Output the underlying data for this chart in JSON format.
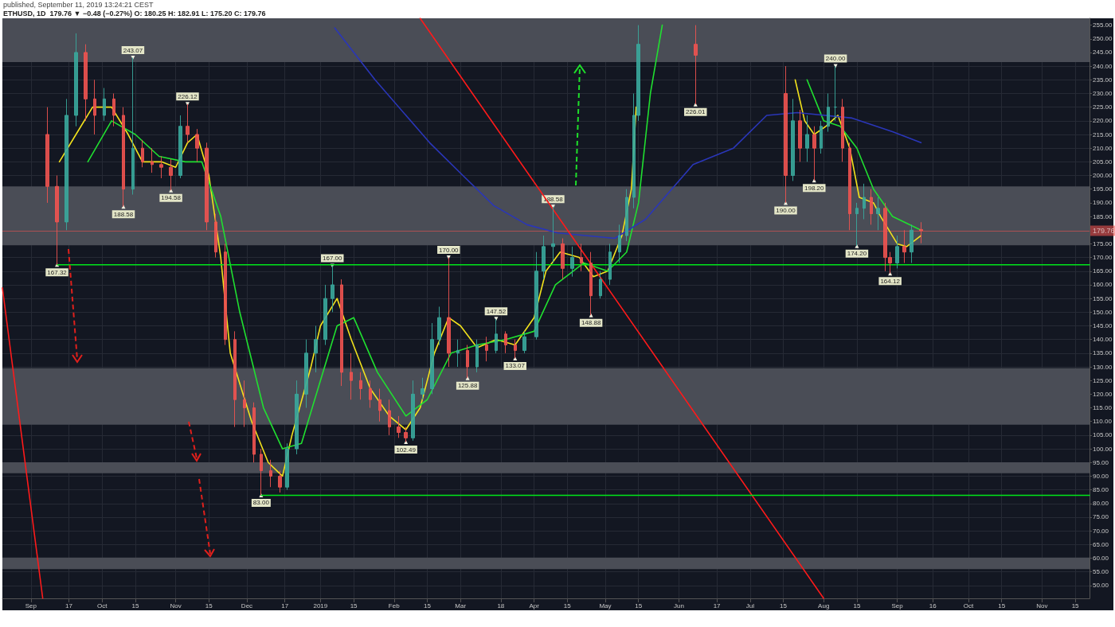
{
  "chart_data": {
    "type": "candlestick",
    "title": "ETHUSD, 1D  179.76 ▼ −0.48 (−0.27%) O: 180.25 H: 182.91 L: 175.20 C: 179.76",
    "subtitle": "published, September 11, 2019 13:24:21 CEST",
    "xlim": [
      "2018-08-20",
      "2019-11-21"
    ],
    "ylim": [
      45.3,
      257.5
    ],
    "grid": true,
    "xticks": [
      {
        "value": "2018-09-01",
        "label": "Sep"
      },
      {
        "value": "2018-09-17",
        "label": "17"
      },
      {
        "value": "2018-10-01",
        "label": "Oct"
      },
      {
        "value": "2018-10-15",
        "label": "15"
      },
      {
        "value": "2018-11-01",
        "label": "Nov"
      },
      {
        "value": "2018-11-15",
        "label": "15"
      },
      {
        "value": "2018-12-01",
        "label": "Dec"
      },
      {
        "value": "2018-12-17",
        "label": "17"
      },
      {
        "value": "2019-01-01",
        "label": "2019"
      },
      {
        "value": "2019-01-15",
        "label": "15"
      },
      {
        "value": "2019-02-01",
        "label": "Feb"
      },
      {
        "value": "2019-02-15",
        "label": "15"
      },
      {
        "value": "2019-03-01",
        "label": "Mar"
      },
      {
        "value": "2019-03-18",
        "label": "18"
      },
      {
        "value": "2019-04-01",
        "label": "Apr"
      },
      {
        "value": "2019-04-15",
        "label": "15"
      },
      {
        "value": "2019-05-01",
        "label": "May"
      },
      {
        "value": "2019-05-15",
        "label": "15"
      },
      {
        "value": "2019-06-01",
        "label": "Jun"
      },
      {
        "value": "2019-06-17",
        "label": "17"
      },
      {
        "value": "2019-07-01",
        "label": "Jul"
      },
      {
        "value": "2019-07-15",
        "label": "15"
      },
      {
        "value": "2019-08-01",
        "label": "Aug"
      },
      {
        "value": "2019-08-15",
        "label": "15"
      },
      {
        "value": "2019-09-01",
        "label": "Sep"
      },
      {
        "value": "2019-09-16",
        "label": "16"
      },
      {
        "value": "2019-10-01",
        "label": "Oct"
      },
      {
        "value": "2019-10-15",
        "label": "15"
      },
      {
        "value": "2019-11-01",
        "label": "Nov"
      },
      {
        "value": "2019-11-15",
        "label": "15"
      }
    ],
    "yticks": [
      {
        "value": 50,
        "label": "50.00"
      },
      {
        "value": 55,
        "label": "55.00"
      },
      {
        "value": 60,
        "label": "60.00"
      },
      {
        "value": 65,
        "label": "65.00"
      },
      {
        "value": 70,
        "label": "70.00"
      },
      {
        "value": 75,
        "label": "75.00"
      },
      {
        "value": 80,
        "label": "80.00"
      },
      {
        "value": 85,
        "label": "85.00"
      },
      {
        "value": 90,
        "label": "90.00"
      },
      {
        "value": 95,
        "label": "95.00"
      },
      {
        "value": 100,
        "label": "100.00"
      },
      {
        "value": 105,
        "label": "105.00"
      },
      {
        "value": 110,
        "label": "110.00"
      },
      {
        "value": 115,
        "label": "115.00"
      },
      {
        "value": 120,
        "label": "120.00"
      },
      {
        "value": 125,
        "label": "125.00"
      },
      {
        "value": 130,
        "label": "130.00"
      },
      {
        "value": 135,
        "label": "135.00"
      },
      {
        "value": 140,
        "label": "140.00"
      },
      {
        "value": 145,
        "label": "145.00"
      },
      {
        "value": 150,
        "label": "150.00"
      },
      {
        "value": 155,
        "label": "155.00"
      },
      {
        "value": 160,
        "label": "160.00"
      },
      {
        "value": 165,
        "label": "165.00"
      },
      {
        "value": 170,
        "label": "170.00"
      },
      {
        "value": 175,
        "label": "175.00"
      },
      {
        "value": 185,
        "label": "185.00"
      },
      {
        "value": 190,
        "label": "190.00"
      },
      {
        "value": 195,
        "label": "195.00"
      },
      {
        "value": 200,
        "label": "200.00"
      },
      {
        "value": 205,
        "label": "205.00"
      },
      {
        "value": 210,
        "label": "210.00"
      },
      {
        "value": 215,
        "label": "215.00"
      },
      {
        "value": 220,
        "label": "220.00"
      },
      {
        "value": 225,
        "label": "225.00"
      },
      {
        "value": 230,
        "label": "230.00"
      },
      {
        "value": 235,
        "label": "235.00"
      },
      {
        "value": 240,
        "label": "240.00"
      },
      {
        "value": 245,
        "label": "245.00"
      },
      {
        "value": 250,
        "label": "250.00"
      },
      {
        "value": 255,
        "label": "255.00"
      }
    ],
    "bands": [
      {
        "axis": "y",
        "from": 241.5,
        "to": 257.5,
        "color": "#4a4d56"
      },
      {
        "axis": "y",
        "from": 174.5,
        "to": 196.0,
        "color": "#4a4d56"
      },
      {
        "axis": "y",
        "from": 108.8,
        "to": 129.5,
        "color": "#4a4d56"
      },
      {
        "axis": "y",
        "from": 91.1,
        "to": 95.1,
        "color": "#4a4d56"
      },
      {
        "axis": "y",
        "from": 56.0,
        "to": 60.2,
        "color": "#4a4d56"
      }
    ],
    "ref_lines": [
      {
        "axis": "y",
        "value": 179.76,
        "label": "179.76",
        "color": "#ef5350"
      }
    ],
    "series": [
      {
        "x": [
          "2018-09-08",
          "2018-09-12",
          "2018-09-16",
          "2018-09-20",
          "2018-09-24",
          "2018-09-28",
          "2018-10-02",
          "2018-10-06",
          "2018-10-10",
          "2018-10-14",
          "2018-10-18",
          "2018-10-22",
          "2018-10-26",
          "2018-10-30",
          "2018-11-03",
          "2018-11-06",
          "2018-11-10",
          "2018-11-14",
          "2018-11-18",
          "2018-11-22",
          "2018-11-26",
          "2018-11-30",
          "2018-12-04",
          "2018-12-07",
          "2018-12-11",
          "2018-12-15",
          "2018-12-18",
          "2018-12-22",
          "2018-12-26",
          "2018-12-30",
          "2019-01-03",
          "2019-01-06",
          "2019-01-10",
          "2019-01-14",
          "2019-01-18",
          "2019-01-22",
          "2019-01-26",
          "2019-01-30",
          "2019-02-03",
          "2019-02-06",
          "2019-02-09",
          "2019-02-13",
          "2019-02-17",
          "2019-02-20",
          "2019-02-24",
          "2019-02-28",
          "2019-03-04",
          "2019-03-08",
          "2019-03-12",
          "2019-03-16",
          "2019-03-20",
          "2019-03-24",
          "2019-03-28",
          "2019-04-02",
          "2019-04-05",
          "2019-04-09",
          "2019-04-13",
          "2019-04-17",
          "2019-04-21",
          "2019-04-25",
          "2019-04-29",
          "2019-05-03",
          "2019-05-07",
          "2019-05-10",
          "2019-05-13",
          "2019-05-15",
          "2019-06-08",
          "2019-07-16",
          "2019-07-19",
          "2019-07-22",
          "2019-07-25",
          "2019-07-28",
          "2019-07-31",
          "2019-08-03",
          "2019-08-06",
          "2019-08-09",
          "2019-08-12",
          "2019-08-15",
          "2019-08-18",
          "2019-08-21",
          "2019-08-24",
          "2019-08-27",
          "2019-08-29",
          "2019-09-01",
          "2019-09-04",
          "2019-09-07",
          "2019-09-11"
        ],
        "ohlc": [
          [
            215,
            225,
            190,
            196
          ],
          [
            196,
            200,
            167.32,
            183
          ],
          [
            183,
            228,
            180,
            222
          ],
          [
            222,
            252,
            218,
            245
          ],
          [
            245,
            248,
            220,
            228
          ],
          [
            228,
            235,
            215,
            222
          ],
          [
            222,
            232,
            220,
            228
          ],
          [
            228,
            230,
            218,
            222
          ],
          [
            222,
            225,
            188.58,
            195
          ],
          [
            195,
            243.07,
            193,
            210
          ],
          [
            210,
            213,
            203,
            205
          ],
          [
            205,
            210,
            201,
            204
          ],
          [
            204,
            207,
            199,
            203
          ],
          [
            203,
            206,
            194.58,
            200
          ],
          [
            200,
            222,
            199,
            218
          ],
          [
            218,
            226.12,
            212,
            215
          ],
          [
            215,
            217,
            205,
            210
          ],
          [
            210,
            212,
            180,
            183
          ],
          [
            183,
            186,
            170,
            172
          ],
          [
            172,
            175,
            138,
            140
          ],
          [
            140,
            143,
            108,
            118
          ],
          [
            118,
            125,
            108,
            115
          ],
          [
            115,
            117,
            95,
            98
          ],
          [
            98,
            100,
            83.0,
            92
          ],
          [
            92,
            96,
            86,
            90
          ],
          [
            90,
            92,
            84,
            86
          ],
          [
            86,
            102,
            85,
            100
          ],
          [
            100,
            125,
            98,
            120
          ],
          [
            120,
            140,
            115,
            135
          ],
          [
            135,
            145,
            128,
            140
          ],
          [
            140,
            160,
            138,
            155
          ],
          [
            155,
            167.0,
            150,
            160
          ],
          [
            160,
            162,
            123,
            128
          ],
          [
            128,
            135,
            118,
            125
          ],
          [
            125,
            128,
            118,
            122
          ],
          [
            122,
            125,
            115,
            118
          ],
          [
            118,
            122,
            110,
            114
          ],
          [
            114,
            118,
            105,
            108
          ],
          [
            108,
            112,
            104,
            106
          ],
          [
            106,
            108,
            102.49,
            104
          ],
          [
            104,
            125,
            103,
            120
          ],
          [
            120,
            126,
            118,
            122
          ],
          [
            122,
            146,
            120,
            140
          ],
          [
            140,
            152,
            138,
            148
          ],
          [
            148,
            170.0,
            130,
            135
          ],
          [
            135,
            140,
            130,
            136
          ],
          [
            136,
            138,
            125.88,
            130
          ],
          [
            130,
            140,
            128,
            138
          ],
          [
            138,
            141,
            132,
            136
          ],
          [
            136,
            147.52,
            135,
            142
          ],
          [
            142,
            143,
            135,
            138
          ],
          [
            138,
            140,
            133.07,
            136
          ],
          [
            136,
            143,
            135,
            141
          ],
          [
            141,
            172,
            140,
            165
          ],
          [
            165,
            178,
            162,
            174
          ],
          [
            174,
            188.58,
            168,
            175
          ],
          [
            175,
            177,
            162,
            166
          ],
          [
            166,
            174,
            163,
            170
          ],
          [
            170,
            175,
            165,
            168
          ],
          [
            168,
            172,
            148.88,
            156
          ],
          [
            156,
            165,
            155,
            162
          ],
          [
            162,
            175,
            160,
            172
          ],
          [
            172,
            182,
            168,
            178
          ],
          [
            178,
            195,
            176,
            192
          ],
          [
            192,
            230,
            188,
            222
          ],
          [
            222,
            255,
            220,
            248
          ],
          [
            248,
            255,
            226.01,
            244
          ],
          [
            230,
            240,
            190.0,
            200
          ],
          [
            200,
            228,
            198,
            220
          ],
          [
            220,
            224,
            205,
            210
          ],
          [
            210,
            222,
            205,
            215
          ],
          [
            215,
            218,
            198.2,
            210
          ],
          [
            210,
            220,
            208,
            218
          ],
          [
            218,
            230,
            216,
            225
          ],
          [
            225,
            240.0,
            220,
            225
          ],
          [
            225,
            228,
            205,
            210
          ],
          [
            210,
            212,
            180,
            186
          ],
          [
            186,
            190,
            174.2,
            188
          ],
          [
            188,
            197,
            184,
            192
          ],
          [
            192,
            195,
            182,
            186
          ],
          [
            186,
            192,
            180,
            188
          ],
          [
            188,
            190,
            165,
            170
          ],
          [
            170,
            172,
            164.12,
            168
          ],
          [
            168,
            178,
            166,
            174
          ],
          [
            174,
            180,
            168,
            172
          ],
          [
            172,
            182,
            168,
            180
          ],
          [
            180.25,
            182.91,
            175.2,
            179.76
          ]
        ]
      },
      {
        "type": "line",
        "color": "#f2e21c",
        "x": [
          "2018-09-13",
          "2018-09-20",
          "2018-09-27",
          "2018-10-05",
          "2018-10-12",
          "2018-10-18",
          "2018-10-26",
          "2018-11-01",
          "2018-11-06",
          "2018-11-10",
          "2018-11-15",
          "2018-11-20",
          "2018-11-24",
          "2018-12-03",
          "2018-12-10",
          "2018-12-16",
          "2018-12-20",
          "2018-12-28",
          "2019-01-01",
          "2019-01-08",
          "2019-01-14",
          "2019-01-22",
          "2019-01-30",
          "2019-02-06",
          "2019-02-12",
          "2019-02-18",
          "2019-02-24",
          "2019-03-01",
          "2019-03-08",
          "2019-03-16",
          "2019-03-24",
          "2019-04-01",
          "2019-04-06",
          "2019-04-12",
          "2019-04-20",
          "2019-04-26",
          "2019-05-02",
          "2019-05-08",
          "2019-05-12",
          "2019-05-14",
          "2019-06-15",
          "2019-07-20",
          "2019-07-24",
          "2019-07-28",
          "2019-08-02",
          "2019-08-07",
          "2019-08-12",
          "2019-08-16",
          "2019-08-22",
          "2019-08-25",
          "2019-09-01",
          "2019-09-05",
          "2019-09-11"
        ],
        "values": [
          205,
          215,
          225,
          225,
          215,
          205,
          205,
          203,
          212,
          215,
          200,
          170,
          135,
          110,
          95,
          90,
          105,
          130,
          145,
          155,
          140,
          122,
          112,
          107,
          115,
          135,
          148,
          145,
          137,
          140,
          138,
          148,
          165,
          172,
          170,
          163,
          165,
          178,
          195,
          225,
          null,
          235,
          220,
          215,
          218,
          222,
          210,
          192,
          190,
          185,
          175,
          174,
          178
        ]
      },
      {
        "type": "line",
        "color": "#20e030",
        "x": [
          "2018-09-25",
          "2018-10-05",
          "2018-10-15",
          "2018-10-25",
          "2018-11-05",
          "2018-11-12",
          "2018-11-20",
          "2018-11-28",
          "2018-12-08",
          "2018-12-16",
          "2018-12-24",
          "2019-01-01",
          "2019-01-08",
          "2019-01-15",
          "2019-01-25",
          "2019-02-06",
          "2019-02-15",
          "2019-02-25",
          "2019-03-08",
          "2019-03-20",
          "2019-04-01",
          "2019-04-10",
          "2019-04-22",
          "2019-05-02",
          "2019-05-10",
          "2019-05-15",
          "2019-05-20",
          "2019-05-25",
          "2019-06-20",
          "2019-07-25",
          "2019-08-01",
          "2019-08-08",
          "2019-08-15",
          "2019-08-22",
          "2019-08-30",
          "2019-09-11"
        ],
        "values": [
          205,
          220,
          215,
          207,
          205,
          205,
          185,
          150,
          115,
          100,
          102,
          125,
          145,
          148,
          128,
          112,
          118,
          135,
          138,
          140,
          143,
          160,
          168,
          165,
          172,
          190,
          230,
          255,
          null,
          235,
          220,
          218,
          210,
          195,
          185,
          180
        ]
      },
      {
        "type": "line",
        "color": "#2a36b8",
        "x": [
          "2019-01-07",
          "2019-01-24",
          "2019-02-16",
          "2019-03-02",
          "2019-03-15",
          "2019-03-29",
          "2019-04-11",
          "2019-05-05",
          "2019-05-18",
          "2019-06-07",
          "2019-06-24",
          "2019-07-08",
          "2019-07-21",
          "2019-08-13",
          "2019-08-30",
          "2019-09-11"
        ],
        "values": [
          254,
          235,
          212,
          200,
          189,
          182,
          179,
          177,
          184,
          204,
          210,
          222,
          223,
          221,
          216,
          212
        ]
      },
      {
        "type": "line",
        "color": "#ff1a1a",
        "x": [
          "2018-08-20",
          "2018-09-06"
        ],
        "values": [
          158.9,
          45.3
        ]
      },
      {
        "type": "line",
        "color": "#ff1a1a",
        "x": [
          "2019-02-12",
          "2019-08-01"
        ],
        "values": [
          257.5,
          45.3
        ]
      },
      {
        "type": "line",
        "color": "#00e61a",
        "x": [
          "2018-09-12",
          "2019-11-21"
        ],
        "values": [
          167.32,
          167.32
        ]
      },
      {
        "type": "line",
        "color": "#00e61a",
        "x": [
          "2018-12-07",
          "2019-11-21"
        ],
        "values": [
          83.0,
          83.0
        ]
      }
    ],
    "annotations": [
      {
        "text": "167.32",
        "x": "2018-09-12",
        "y": 167.32
      },
      {
        "text": "243.07",
        "x": "2018-10-14",
        "y": 243.07
      },
      {
        "text": "188.58",
        "x": "2018-10-10",
        "y": 188.58
      },
      {
        "text": "194.58",
        "x": "2018-10-30",
        "y": 194.58
      },
      {
        "text": "226.12",
        "x": "2018-11-06",
        "y": 226.12
      },
      {
        "text": "83.00",
        "x": "2018-12-07",
        "y": 83.0
      },
      {
        "text": "167.00",
        "x": "2019-01-06",
        "y": 167.0
      },
      {
        "text": "102.49",
        "x": "2019-02-06",
        "y": 102.49
      },
      {
        "text": "170.00",
        "x": "2019-02-24",
        "y": 170.0
      },
      {
        "text": "125.88",
        "x": "2019-03-04",
        "y": 125.88
      },
      {
        "text": "147.52",
        "x": "2019-03-16",
        "y": 147.52
      },
      {
        "text": "133.07",
        "x": "2019-03-24",
        "y": 133.07
      },
      {
        "text": "188.58",
        "x": "2019-04-09",
        "y": 188.58
      },
      {
        "text": "148.88",
        "x": "2019-04-25",
        "y": 148.88
      },
      {
        "text": "226.01",
        "x": "2019-06-08",
        "y": 226.01
      },
      {
        "text": "190.00",
        "x": "2019-07-16",
        "y": 190.0
      },
      {
        "text": "198.20",
        "x": "2019-07-28",
        "y": 198.2
      },
      {
        "text": "240.00",
        "x": "2019-08-06",
        "y": 240.0
      },
      {
        "text": "174.20",
        "x": "2019-08-15",
        "y": 174.2
      },
      {
        "text": "164.12",
        "x": "2019-08-29",
        "y": 164.12
      }
    ]
  }
}
